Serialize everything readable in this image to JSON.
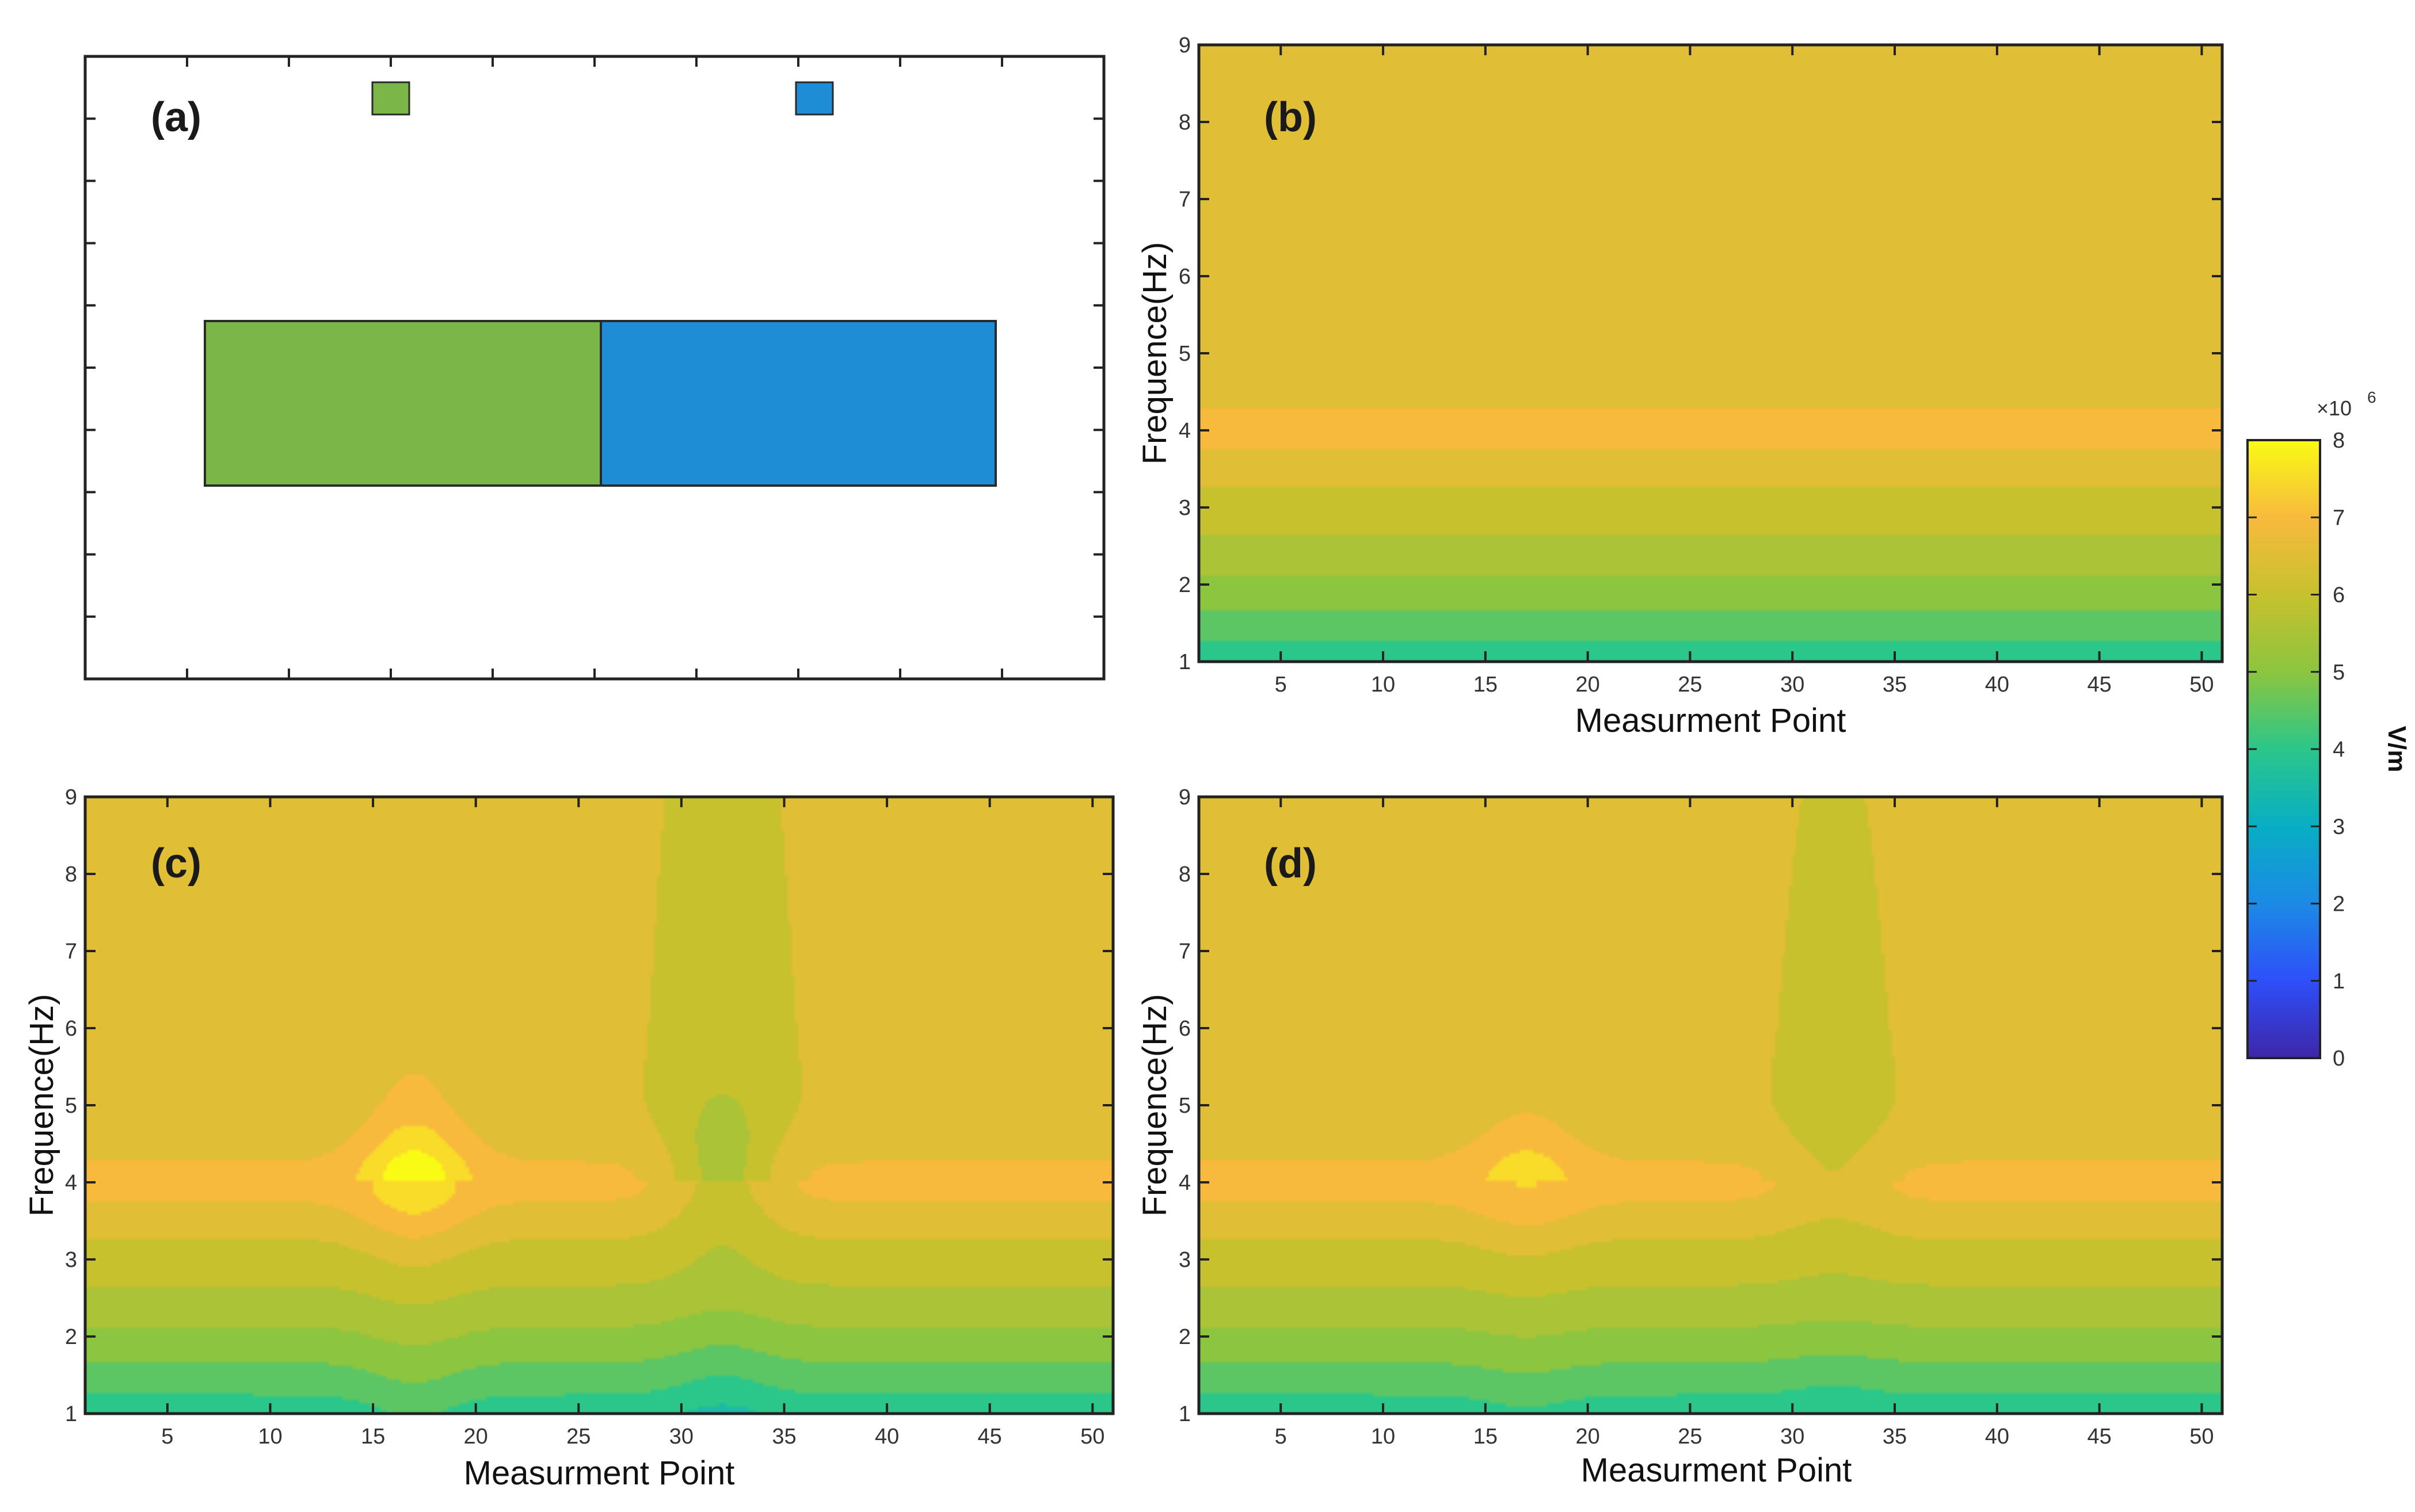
{
  "chart_data": [
    {
      "type": "diagram",
      "panel_label": "(a)",
      "blocks": [
        {
          "name": "small-green-block",
          "color": "#7ab648"
        },
        {
          "name": "small-blue-block",
          "color": "#1f8dd6"
        },
        {
          "name": "large-green-block",
          "color": "#7ab648"
        },
        {
          "name": "large-blue-block",
          "color": "#1f8dd6"
        }
      ]
    },
    {
      "type": "heatmap",
      "panel_label": "(b)",
      "xlabel": "Measurment Point",
      "ylabel": "Frequence(Hz)",
      "xticks": [
        5,
        10,
        15,
        20,
        25,
        30,
        35,
        40,
        45,
        50
      ],
      "yticks": [
        1,
        2,
        3,
        4,
        5,
        6,
        7,
        8,
        9
      ],
      "xlim": [
        1,
        51
      ],
      "ylim": [
        1,
        9
      ],
      "anomalies": []
    },
    {
      "type": "heatmap",
      "panel_label": "(c)",
      "xlabel": "Measurment Point",
      "ylabel": "Frequence(Hz)",
      "xticks": [
        5,
        10,
        15,
        20,
        25,
        30,
        35,
        40,
        45,
        50
      ],
      "yticks": [
        1,
        2,
        3,
        4,
        5,
        6,
        7,
        8,
        9
      ],
      "xlim": [
        1,
        51
      ],
      "ylim": [
        1,
        9
      ],
      "anomalies": [
        {
          "x": 17,
          "strength": 1.0,
          "sign": 1
        },
        {
          "x": 32,
          "strength": 1.0,
          "sign": -1
        }
      ]
    },
    {
      "type": "heatmap",
      "panel_label": "(d)",
      "xlabel": "Measurment Point",
      "ylabel": "Frequence(Hz)",
      "xticks": [
        5,
        10,
        15,
        20,
        25,
        30,
        35,
        40,
        45,
        50
      ],
      "yticks": [
        1,
        2,
        3,
        4,
        5,
        6,
        7,
        8,
        9
      ],
      "xlim": [
        1,
        51
      ],
      "ylim": [
        1,
        9
      ],
      "anomalies": [
        {
          "x": 17,
          "strength": 0.55,
          "sign": 1
        },
        {
          "x": 32,
          "strength": 0.45,
          "sign": -1
        }
      ]
    }
  ],
  "colorbar": {
    "label": "V/m",
    "multiplier": "×10",
    "exponent": "6",
    "ticks": [
      0,
      1,
      2,
      3,
      4,
      5,
      6,
      7,
      8
    ],
    "range": [
      0,
      8
    ],
    "colormap": [
      "#3e26a8",
      "#2e4ff9",
      "#1c8ae5",
      "#08aec4",
      "#2bc68a",
      "#8cc53f",
      "#c7c12e",
      "#f8ba3d",
      "#f9fb15"
    ]
  }
}
